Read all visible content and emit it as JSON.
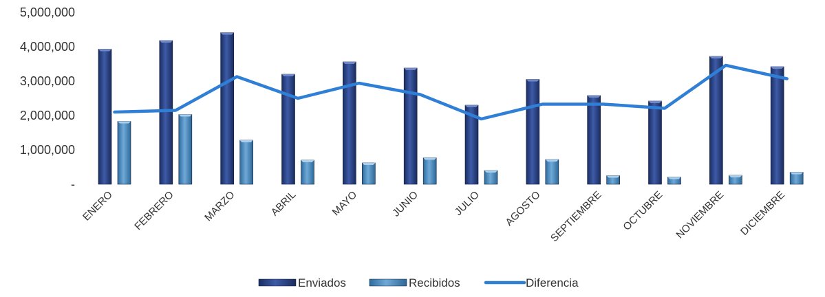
{
  "chart_data": {
    "type": "bar",
    "categories": [
      "ENERO",
      "FEBRERO",
      "MARZO",
      "ABRIL",
      "MAYO",
      "JUNIO",
      "JULIO",
      "AGOSTO",
      "SEPTIEMBRE",
      "OCTUBRE",
      "NOVIEMBRE",
      "DICIEMBRE"
    ],
    "series": [
      {
        "name": "Enviados",
        "type": "bar",
        "color": "#2E4A8F",
        "values": [
          3930000,
          4180000,
          4410000,
          3200000,
          3560000,
          3380000,
          2300000,
          3050000,
          2580000,
          2420000,
          3720000,
          3420000
        ]
      },
      {
        "name": "Recibidos",
        "type": "bar",
        "color": "#4A8CC2",
        "values": [
          1830000,
          2030000,
          1280000,
          700000,
          620000,
          770000,
          400000,
          720000,
          250000,
          210000,
          260000,
          350000
        ]
      },
      {
        "name": "Diferencia",
        "type": "line",
        "color": "#2F7FD6",
        "values": [
          2100000,
          2150000,
          3130000,
          2500000,
          2940000,
          2610000,
          1900000,
          2330000,
          2330000,
          2210000,
          3460000,
          3070000
        ]
      }
    ],
    "ylim": [
      0,
      5000000
    ],
    "yticks": [
      {
        "value": 0,
        "label": "-"
      },
      {
        "value": 1000000,
        "label": "1,000,000"
      },
      {
        "value": 2000000,
        "label": "2,000,000"
      },
      {
        "value": 3000000,
        "label": "3,000,000"
      },
      {
        "value": 4000000,
        "label": "4,000,000"
      },
      {
        "value": 5000000,
        "label": "5,000,000"
      }
    ],
    "grid": false,
    "legend_position": "bottom",
    "title": "",
    "xlabel": "",
    "ylabel": ""
  }
}
